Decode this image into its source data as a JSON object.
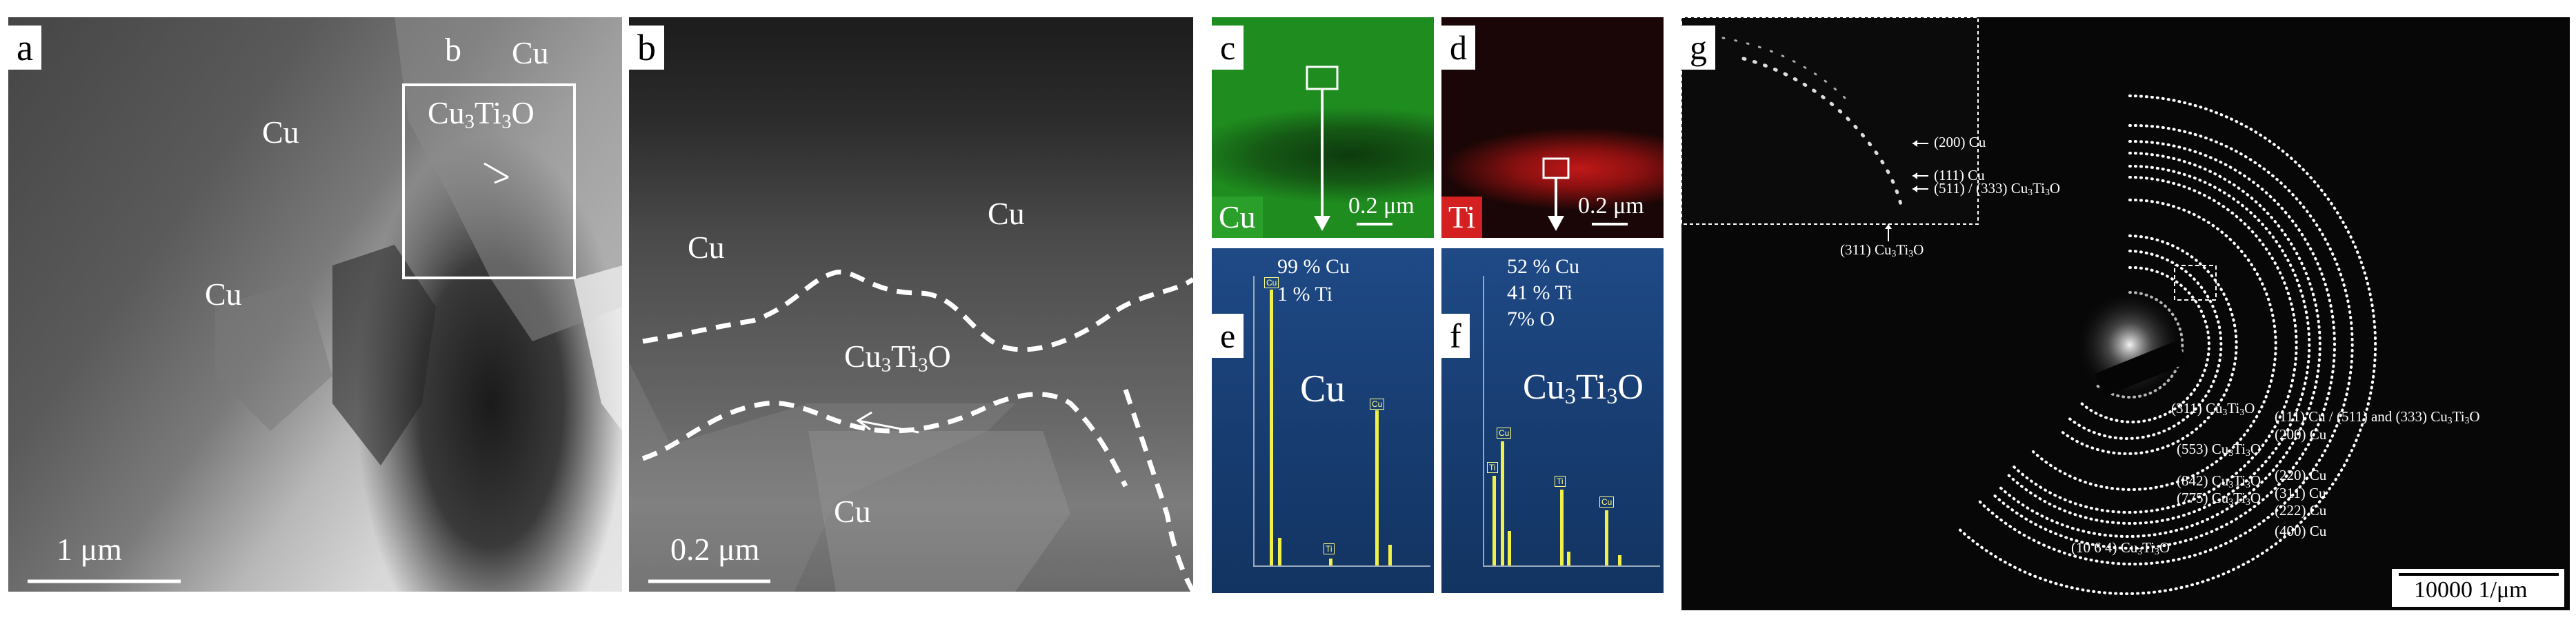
{
  "panels": {
    "a": {
      "label": "a",
      "inset_label": "b",
      "phases": [
        "Cu",
        "Cu",
        "Cu",
        "Cu"
      ],
      "phase_label": "Cu3Ti3O",
      "scale_bar": "1 μm"
    },
    "b": {
      "label": "b",
      "phases": [
        "Cu",
        "Cu",
        "Cu"
      ],
      "phase_label": "Cu3Ti3O",
      "scale_bar": "0.2 μm"
    },
    "c": {
      "label": "c",
      "element": "Cu",
      "scale_bar": "0.2 μm",
      "map_color": "#2aa02a"
    },
    "d": {
      "label": "d",
      "element": "Ti",
      "scale_bar": "0.2 μm",
      "map_color": "#d42020"
    },
    "e": {
      "label": "e",
      "composition": [
        "99 % Cu",
        "1 % Ti"
      ],
      "phase": "Cu",
      "peaks": [
        "Cu",
        "Cu",
        "Ti"
      ]
    },
    "f": {
      "label": "f",
      "composition": [
        "52 % Cu",
        "41 % Ti",
        "7% O"
      ],
      "phase": "Cu3Ti3O",
      "peaks": [
        "Ti",
        "Cu",
        "Ti",
        "Cu"
      ]
    },
    "g": {
      "label": "g",
      "inset_labels": [
        "(200) Cu",
        "(111) Cu",
        "(511) / (333) Cu3Ti3O",
        "(311) Cu3Ti3O"
      ],
      "ring_labels": [
        "(311) Cu3Ti3O",
        "(111) Cu / (511) and (333) Cu3Ti3O",
        "(200) Cu",
        "(553) Cu3Ti3O",
        "(220) Cu",
        "(842) Cu3Ti3O",
        "(311) Cu",
        "(775) Cu3Ti3O",
        "(222) Cu",
        "(400) Cu",
        "(10 6 4) Cu3Ti3O"
      ],
      "scale_bar": "10000 1/μm"
    }
  }
}
